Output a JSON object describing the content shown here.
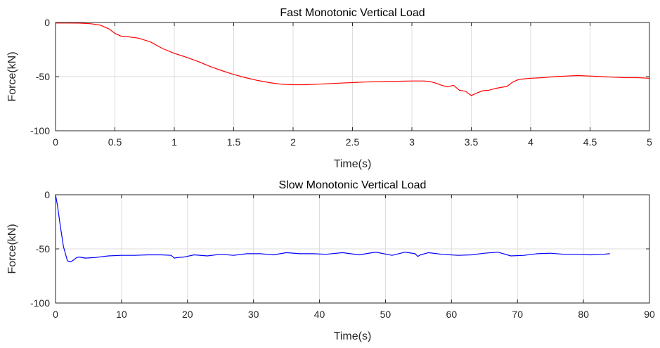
{
  "chart_data": [
    {
      "type": "line",
      "title": "Fast Monotonic Vertical Load",
      "xlabel": "Time(s)",
      "ylabel": "Force(kN)",
      "xlim": [
        0,
        5
      ],
      "ylim": [
        -100,
        0
      ],
      "xticks": [
        "0",
        "0.5",
        "1",
        "1.5",
        "2",
        "2.5",
        "3",
        "3.5",
        "4",
        "4.5",
        "5"
      ],
      "yticks": [
        "0",
        "-50",
        "-100"
      ],
      "grid": true,
      "legend": "none",
      "color": "#ff0000",
      "series": [
        {
          "x": [
            0,
            0.1,
            0.2,
            0.3,
            0.38,
            0.45,
            0.5,
            0.55,
            0.6,
            0.7,
            0.8,
            0.9,
            1.0,
            1.1,
            1.2,
            1.3,
            1.4,
            1.5,
            1.6,
            1.7,
            1.8,
            1.9,
            2.0,
            2.1,
            2.2,
            2.4,
            2.6,
            2.8,
            3.0,
            3.1,
            3.15,
            3.2,
            3.25,
            3.3,
            3.35,
            3.4,
            3.45,
            3.5,
            3.55,
            3.6,
            3.65,
            3.7,
            3.75,
            3.8,
            3.85,
            3.9,
            4.0,
            4.1,
            4.2,
            4.3,
            4.4,
            4.5,
            4.6,
            4.7,
            4.8,
            4.9,
            5.0
          ],
          "y": [
            -0.5,
            -0.5,
            -0.6,
            -1.2,
            -2.5,
            -6,
            -10,
            -12.5,
            -13,
            -14.5,
            -18,
            -24,
            -28.5,
            -32,
            -36,
            -40.5,
            -44.5,
            -48,
            -51,
            -53.5,
            -55.5,
            -57,
            -57.5,
            -57.5,
            -57,
            -56,
            -55,
            -54.5,
            -54,
            -54,
            -54.5,
            -56,
            -58,
            -59.5,
            -58,
            -62.5,
            -63.5,
            -67.5,
            -65,
            -63,
            -62.5,
            -61,
            -60,
            -59,
            -55,
            -52.5,
            -51.5,
            -51,
            -50,
            -49.5,
            -49,
            -49.5,
            -50,
            -50.5,
            -51,
            -51,
            -51.5
          ]
        }
      ]
    },
    {
      "type": "line",
      "title": "Slow Monotonic Vertical Load",
      "xlabel": "Time(s)",
      "ylabel": "Force(kN)",
      "xlim": [
        0,
        90
      ],
      "ylim": [
        -100,
        0
      ],
      "xticks": [
        "0",
        "10",
        "20",
        "30",
        "40",
        "50",
        "60",
        "70",
        "80",
        "90"
      ],
      "yticks": [
        "0",
        "-50",
        "-100"
      ],
      "grid": true,
      "legend": "none",
      "color": "#0000ff",
      "series": [
        {
          "x": [
            0,
            0.3,
            0.7,
            1.2,
            1.8,
            2.3,
            2.8,
            3.2,
            3.6,
            4.5,
            6,
            8,
            10,
            12,
            14,
            16,
            17.5,
            18,
            18.5,
            19.5,
            21,
            23,
            25,
            27,
            29,
            31,
            33,
            35,
            37,
            39,
            41,
            43.5,
            46,
            48.5,
            51,
            53,
            54.5,
            54.9,
            55.3,
            56.5,
            58.5,
            61,
            63,
            65,
            67,
            69,
            71,
            73,
            75,
            77,
            79,
            81,
            83,
            84
          ],
          "y": [
            0,
            -10,
            -28,
            -48,
            -61,
            -62,
            -60,
            -58,
            -57.5,
            -58.5,
            -58,
            -56.5,
            -56,
            -56,
            -55.5,
            -55.5,
            -56,
            -58.5,
            -58,
            -57.5,
            -55.5,
            -56.5,
            -55,
            -56,
            -54.5,
            -54.5,
            -55.5,
            -53.5,
            -54.5,
            -54.5,
            -55,
            -53.5,
            -55.5,
            -53,
            -56,
            -53,
            -54.5,
            -57,
            -55.5,
            -53.5,
            -55,
            -56,
            -55.5,
            -54,
            -53,
            -56.5,
            -56,
            -54.5,
            -54,
            -55,
            -55,
            -55.5,
            -55,
            -54.5
          ]
        }
      ]
    }
  ]
}
